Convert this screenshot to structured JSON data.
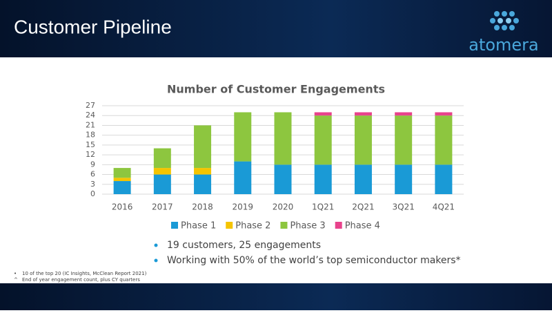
{
  "header": {
    "title": "Customer Pipeline",
    "logo": "atomera"
  },
  "chart_data": {
    "type": "stacked_bar",
    "title": "Number of Customer Engagements",
    "categories": [
      "2016",
      "2017",
      "2018",
      "2019",
      "2020",
      "1Q21",
      "2Q21",
      "3Q21",
      "4Q21"
    ],
    "series": [
      {
        "name": "Phase 1",
        "color": "#1a9ad6",
        "values": [
          4,
          6,
          6,
          10,
          9,
          9,
          9,
          9,
          9
        ]
      },
      {
        "name": "Phase 2",
        "color": "#f5c400",
        "values": [
          1,
          2,
          2,
          0,
          0,
          0,
          0,
          0,
          0
        ]
      },
      {
        "name": "Phase 3",
        "color": "#8dc63f",
        "values": [
          3,
          6,
          13,
          15,
          16,
          15,
          15,
          15,
          15
        ]
      },
      {
        "name": "Phase 4",
        "color": "#e8428c",
        "values": [
          0,
          0,
          0,
          0,
          0,
          1,
          1,
          1,
          1
        ]
      }
    ],
    "ylim": [
      0,
      27
    ],
    "yticks": [
      0,
      3,
      6,
      9,
      12,
      15,
      18,
      21,
      24,
      27
    ],
    "grid": true,
    "legend": "bottom"
  },
  "bullets": [
    "19 customers, 25 engagements",
    "Working with 50% of the world’s top semiconductor makers*"
  ],
  "footnotes": [
    {
      "marker": "•",
      "text": "10 of the top 20 (IC Insights, McClean Report 2021)"
    },
    {
      "marker": "^",
      "text": "End of year engagement count, plus CY quarters"
    }
  ]
}
